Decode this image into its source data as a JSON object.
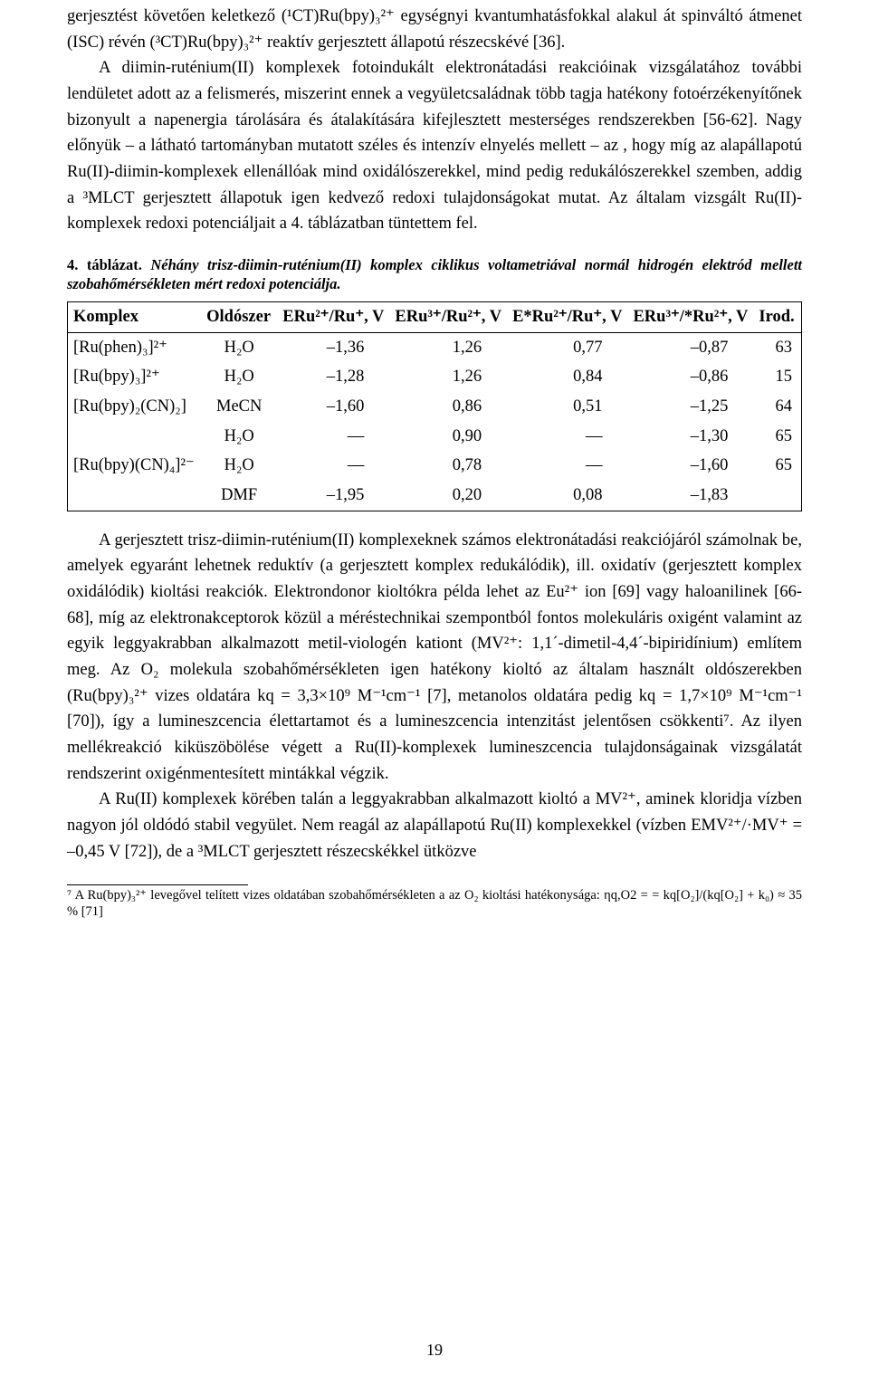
{
  "paragraphs": {
    "p1": "gerjesztést követően keletkező (¹CT)Ru(bpy)₃²⁺ egységnyi kvantumhatásfokkal alakul át spinváltó átmenet (ISC) révén (³CT)Ru(bpy)₃²⁺ reaktív gerjesztett állapotú részecskévé [36].",
    "p2": "A diimin-ruténium(II) komplexek fotoindukált elektronátadási reakcióinak vizsgálatához további lendületet adott az a felismerés, miszerint ennek a vegyületcsaládnak több tagja hatékony fotoérzékenyítőnek bizonyult a napenergia tárolására és átalakítására kifejlesztett mesterséges rendszerekben [56-62]. Nagy előnyük – a látható tartományban mutatott széles és intenzív elnyelés mellett – az , hogy míg az alapállapotú Ru(II)-diimin-komplexek ellenállóak mind oxidálószerekkel, mind pedig redukálószerekkel szemben, addig a ³MLCT gerjesztett állapotuk igen kedvező redoxi tulajdonságokat mutat. Az általam vizsgált Ru(II)-komplexek redoxi potenciáljait a 4. táblázatban tüntettem fel.",
    "p3": "A gerjesztett trisz-diimin-ruténium(II) komplexeknek számos elektronátadási reakciójáról számolnak be, amelyek egyaránt lehetnek reduktív (a gerjesztett komplex redukálódik), ill. oxidatív (gerjesztett komplex oxidálódik) kioltási reakciók. Elektrondonor kioltókra példa lehet az Eu²⁺ ion [69] vagy haloanilinek [66-68], míg az elektronakceptorok közül a méréstech­nikai szempontból fontos molekuláris oxigént valamint az egyik leggyakrabban alkalmazott metil-viologén kationt (MV²⁺: 1,1´-dimetil-4,4´-bipiridínium) említem meg. Az O₂ molekula szobahőmérsékleten igen hatékony kioltó az általam használt oldószerekben (Ru(bpy)₃²⁺ vizes oldatára kq = 3,3×10⁹ M⁻¹cm⁻¹ [7], metanolos oldatára pedig kq = 1,7×10⁹ M⁻¹cm⁻¹ [70]), így a lumineszcencia élettartamot és a lumineszcencia intenzitást jelentősen csökkenti⁷. Az ilyen mellékreakció kiküszöbölése végett a Ru(II)-komplexek lumineszcencia tulajdonságainak vizsgálatát rendszerint oxigénmentesített mintákkal végzik.",
    "p4": "A Ru(II) komplexek körében talán a leggyakrabban alkalmazott kioltó a MV²⁺, aminek kloridja vízben nagyon jól oldódó stabil vegyület. Nem reagál az alapállapotú Ru(II) komplexekkel (vízben EMV²⁺/·MV⁺ = –0,45 V [72]), de a ³MLCT gerjesztett részecskékkel ütközve"
  },
  "table": {
    "caption_lead": "4. táblázat.",
    "caption_rest": " Néhány trisz-diimin-ruténium(II) komplex ciklikus voltametriával normál hidrogén elektród mellett szobahőmérsékleten mért redoxi potenciálja.",
    "headers": {
      "h0": "Komplex",
      "h1": "Oldószer",
      "h2": "ERu²⁺/Ru⁺, V",
      "h3": "ERu³⁺/Ru²⁺, V",
      "h4": "E*Ru²⁺/Ru⁺, V",
      "h5": "ERu³⁺/*Ru²⁺, V",
      "h6": "Irod."
    },
    "rows": [
      {
        "c0": "[Ru(phen)₃]²⁺",
        "c1": "H₂O",
        "c2": "–1,36",
        "c3": "1,26",
        "c4": "0,77",
        "c5": "–0,87",
        "c6": "63"
      },
      {
        "c0": "[Ru(bpy)₃]²⁺",
        "c1": "H₂O",
        "c2": "–1,28",
        "c3": "1,26",
        "c4": "0,84",
        "c5": "–0,86",
        "c6": "15"
      },
      {
        "c0": "[Ru(bpy)₂(CN)₂]",
        "c1": "MeCN",
        "c2": "–1,60",
        "c3": "0,86",
        "c4": "0,51",
        "c5": "–1,25",
        "c6": "64"
      },
      {
        "c0": "",
        "c1": "H₂O",
        "c2": "—",
        "c3": "0,90",
        "c4": "—",
        "c5": "–1,30",
        "c6": "65"
      },
      {
        "c0": "[Ru(bpy)(CN)₄]²⁻",
        "c1": "H₂O",
        "c2": "—",
        "c3": "0,78",
        "c4": "—",
        "c5": "–1,60",
        "c6": "65"
      },
      {
        "c0": "",
        "c1": "DMF",
        "c2": "–1,95",
        "c3": "0,20",
        "c4": "0,08",
        "c5": "–1,83",
        "c6": ""
      }
    ]
  },
  "footnote": "⁷ A Ru(bpy)₃²⁺ levegővel telített vizes oldatában szobahőmérsékleten a az O₂ kioltási hatékonysága: ηq,O2 = = kq[O₂]/(kq[O₂] + k₀) ≈ 35 % [71]",
  "page_number": "19"
}
